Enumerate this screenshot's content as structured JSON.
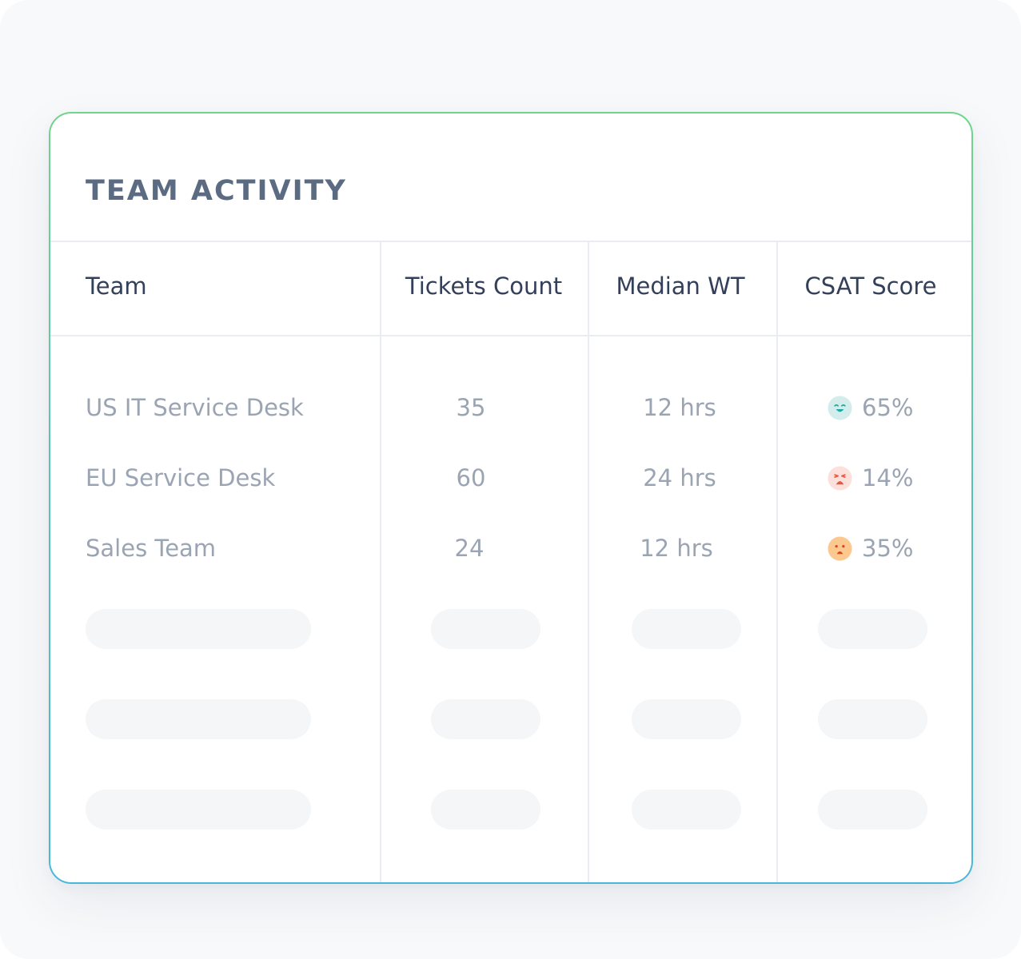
{
  "panel": {
    "title": "TEAM ACTIVITY"
  },
  "table": {
    "headers": {
      "team": "Team",
      "tickets": "Tickets Count",
      "median_wt": "Median WT",
      "csat": "CSAT Score"
    },
    "rows": [
      {
        "team": "US IT Service Desk",
        "tickets": "35",
        "median_wt": "12 hrs",
        "csat": "65%",
        "mood_icon": "happy-face-icon",
        "mood_color": "#1fa9a0"
      },
      {
        "team": "EU Service Desk",
        "tickets": "60",
        "median_wt": "24 hrs",
        "csat": "14%",
        "mood_icon": "crying-face-icon",
        "mood_color": "#e9573f"
      },
      {
        "team": "Sales Team",
        "tickets": "24",
        "median_wt": "12 hrs",
        "csat": "35%",
        "mood_icon": "sad-face-icon",
        "mood_color": "#f08a24"
      }
    ]
  },
  "colors": {
    "border_gradient_top": "#6fd58a",
    "border_gradient_bottom": "#4ab7d8",
    "title": "#5a6b82",
    "header_text": "#34405a",
    "cell_text": "#9aa4b3",
    "skeleton": "#f4f6f8"
  }
}
